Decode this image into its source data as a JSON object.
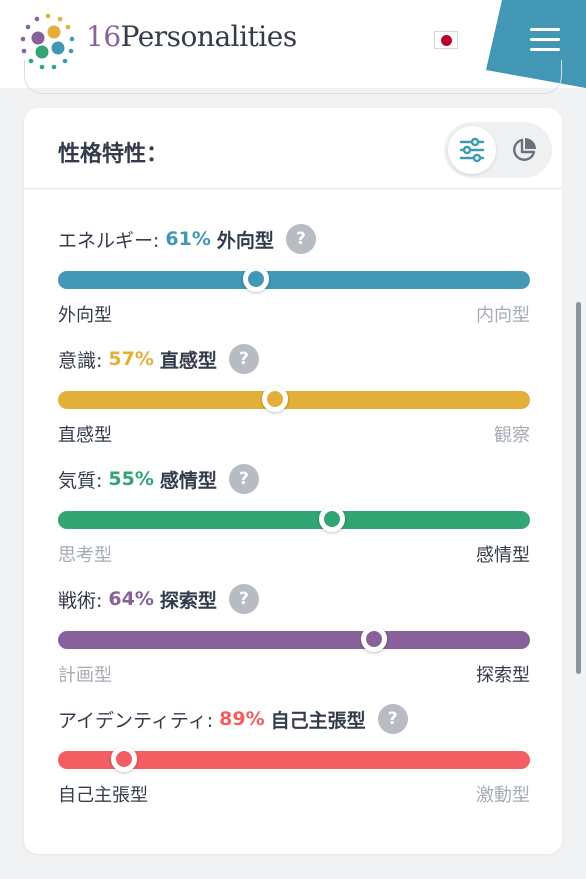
{
  "header": {
    "brand_number": "16",
    "brand_name": "Personalities",
    "flag": "japan-flag",
    "menu_icon": "hamburger-menu-icon",
    "accent": "#4298b4"
  },
  "card": {
    "title": "性格特性：",
    "view_toggle": {
      "active": "sliders-icon",
      "inactive": "pie-chart-icon"
    }
  },
  "traits": [
    {
      "label": "エネルギー:",
      "percent": "61%",
      "type": "外向型",
      "value": 0.42,
      "color": "#4298b4",
      "left": "外向型",
      "right": "内向型",
      "active_side": "left"
    },
    {
      "label": "意識:",
      "percent": "57%",
      "type": "直感型",
      "value": 0.46,
      "color": "#e4ae3a",
      "left": "直感型",
      "right": "観察",
      "active_side": "left"
    },
    {
      "label": "気質:",
      "percent": "55%",
      "type": "感情型",
      "value": 0.58,
      "color": "#33a474",
      "left": "思考型",
      "right": "感情型",
      "active_side": "right"
    },
    {
      "label": "戦術:",
      "percent": "64%",
      "type": "探索型",
      "value": 0.67,
      "color": "#88619a",
      "left": "計画型",
      "right": "探索型",
      "active_side": "right"
    },
    {
      "label": "アイデンティティ:",
      "percent": "89%",
      "type": "自己主張型",
      "value": 0.14,
      "color": "#f25e62",
      "left": "自己主張型",
      "right": "激動型",
      "active_side": "left"
    }
  ],
  "help_glyph": "?"
}
